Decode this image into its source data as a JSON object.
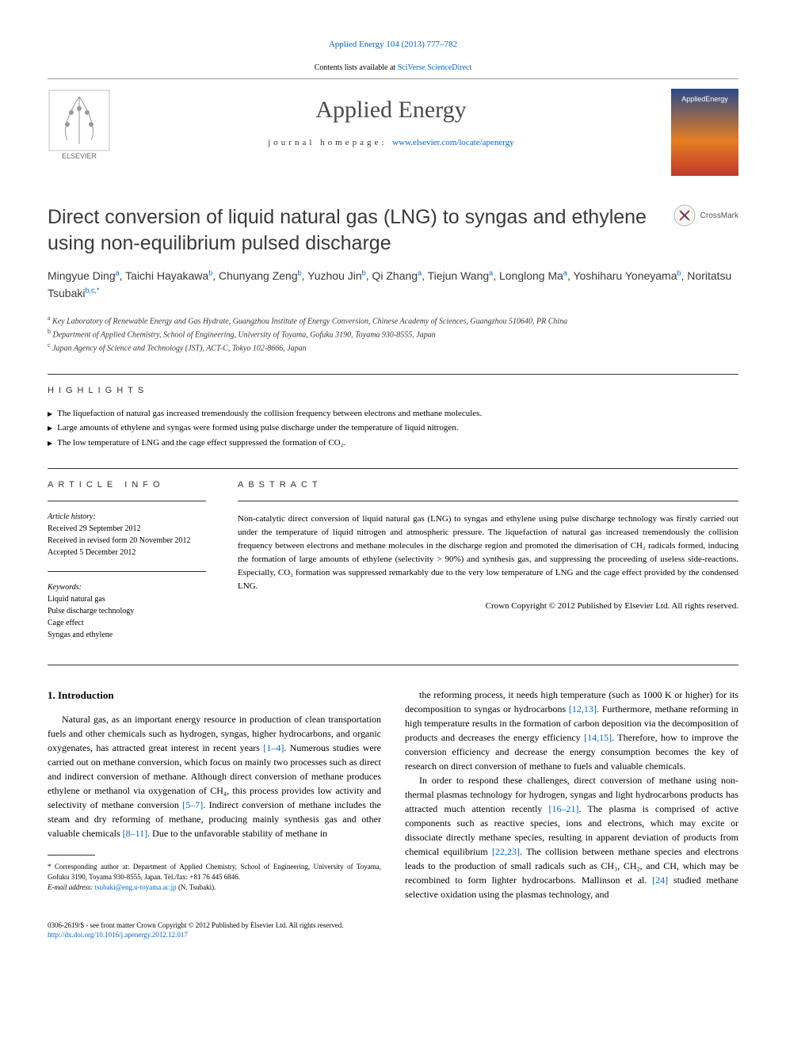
{
  "top_link": "Applied Energy 104 (2013) 777–782",
  "sciverse": {
    "prefix": "Contents lists available at ",
    "link": "SciVerse ScienceDirect"
  },
  "journal": {
    "name": "Applied Energy",
    "homepage_prefix": "journal homepage: ",
    "homepage_link": "www.elsevier.com/locate/apenergy",
    "cover_label": "AppliedEnergy"
  },
  "title": "Direct conversion of liquid natural gas (LNG) to syngas and ethylene using non-equilibrium pulsed discharge",
  "crossmark_label": "CrossMark",
  "authors_html": "Mingyue Ding<sup>a</sup>, Taichi Hayakawa<sup>b</sup>, Chunyang Zeng<sup>b</sup>, Yuzhou Jin<sup>b</sup>, Qi Zhang<sup>a</sup>, Tiejun Wang<sup>a</sup>, Longlong Ma<sup>a</sup>, Yoshiharu Yoneyama<sup>b</sup>, Noritatsu Tsubaki<sup>b,c,*</sup>",
  "affiliations": [
    {
      "sup": "a",
      "text": "Key Laboratory of Renewable Energy and Gas Hydrate, Guangzhou Institute of Energy Conversion, Chinese Academy of Sciences, Guangzhou 510640, PR China"
    },
    {
      "sup": "b",
      "text": "Department of Applied Chemistry, School of Engineering, University of Toyama, Gofuku 3190, Toyama 930-8555, Japan"
    },
    {
      "sup": "c",
      "text": "Japan Agency of Science and Technology (JST), ACT-C, Tokyo 102-8666, Japan"
    }
  ],
  "highlights": {
    "label": "HIGHLIGHTS",
    "items": [
      "The liquefaction of natural gas increased tremendously the collision frequency between electrons and methane molecules.",
      "Large amounts of ethylene and syngas were formed using pulse discharge under the temperature of liquid nitrogen.",
      "The low temperature of LNG and the cage effect suppressed the formation of CO₂."
    ]
  },
  "article_info": {
    "label": "ARTICLE INFO",
    "history_label": "Article history:",
    "history": [
      "Received 29 September 2012",
      "Received in revised form 20 November 2012",
      "Accepted 5 December 2012"
    ],
    "keywords_label": "Keywords:",
    "keywords": [
      "Liquid natural gas",
      "Pulse discharge technology",
      "Cage effect",
      "Syngas and ethylene"
    ]
  },
  "abstract": {
    "label": "ABSTRACT",
    "text": "Non-catalytic direct conversion of liquid natural gas (LNG) to syngas and ethylene using pulse discharge technology was firstly carried out under the temperature of liquid nitrogen and atmospheric pressure. The liquefaction of natural gas increased tremendously the collision frequency between electrons and methane molecules in the discharge region and promoted the dimerisation of CH₂ radicals formed, inducing the formation of large amounts of ethylene (selectivity > 90%) and synthesis gas, and suppressing the proceeding of useless side-reactions. Especially, CO₂ formation was suppressed remarkably due to the very low temperature of LNG and the cage effect provided by the condensed LNG.",
    "copyright": "Crown Copyright © 2012 Published by Elsevier Ltd. All rights reserved."
  },
  "intro": {
    "heading": "1. Introduction",
    "col1_p1": "Natural gas, as an important energy resource in production of clean transportation fuels and other chemicals such as hydrogen, syngas, higher hydrocarbons, and organic oxygenates, has attracted great interest in recent years [1–4]. Numerous studies were carried out on methane conversion, which focus on mainly two processes such as direct and indirect conversion of methane. Although direct conversion of methane produces ethylene or methanol via oxygenation of CH₄, this process provides low activity and selectivity of methane conversion [5–7]. Indirect conversion of methane includes the steam and dry reforming of methane, producing mainly synthesis gas and other valuable chemicals [8–11]. Due to the unfavorable stability of methane in",
    "col2_p1": "the reforming process, it needs high temperature (such as 1000 K or higher) for its decomposition to syngas or hydrocarbons [12,13]. Furthermore, methane reforming in high temperature results in the formation of carbon deposition via the decomposition of products and decreases the energy efficiency [14,15]. Therefore, how to improve the conversion efficiency and decrease the energy consumption becomes the key of research on direct conversion of methane to fuels and valuable chemicals.",
    "col2_p2": "In order to respond these challenges, direct conversion of methane using non-thermal plasmas technology for hydrogen, syngas and light hydrocarbons products has attracted much attention recently [16–21]. The plasma is comprised of active components such as reactive species, ions and electrons, which may excite or dissociate directly methane species, resulting in apparent deviation of products from chemical equilibrium [22,23]. The collision between methane species and electrons leads to the production of small radicals such as CH₃, CH₂, and CH, which may be recombined to form lighter hydrocarbons. Mallinson et al. [24] studied methane selective oxidation using the plasmas technology, and",
    "refs_col1": [
      "[1–4]",
      "[5–7]",
      "[8–11]"
    ],
    "refs_col2": [
      "[12,13]",
      "[14,15]",
      "[16–21]",
      "[22,23]",
      "[24]"
    ]
  },
  "footnote": {
    "corresponding": "* Corresponding author at: Department of Applied Chemistry, School of Engineering, University of Toyama, Gofuku 3190, Toyama 930-8555, Japan. Tel./fax: +81 76 445 6846.",
    "email_label": "E-mail address: ",
    "email": "tsubaki@eng.u-toyama.ac.jp",
    "email_suffix": " (N. Tsubaki)."
  },
  "footer": {
    "issn": "0306-2619/$ - see front matter Crown Copyright © 2012 Published by Elsevier Ltd. All rights reserved.",
    "doi": "http://dx.doi.org/10.1016/j.apenergy.2012.12.017"
  },
  "colors": {
    "link": "#0066cc",
    "text": "#000000",
    "heading": "#3a3a3a",
    "divider": "#333333"
  }
}
